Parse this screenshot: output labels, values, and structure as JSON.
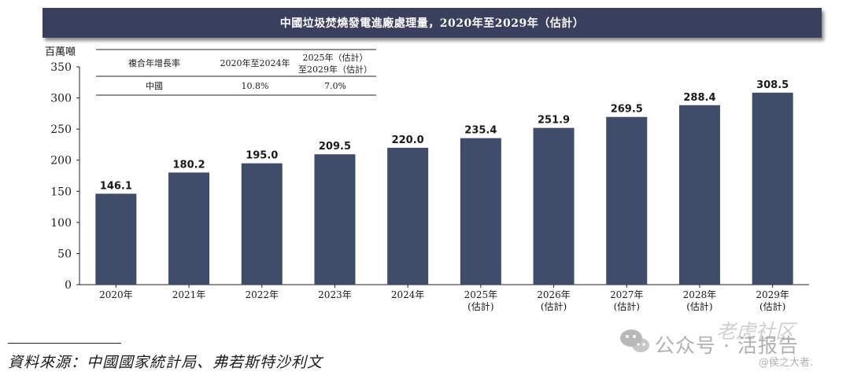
{
  "chart_data": {
    "type": "bar",
    "title": "中國垃圾焚燒發電進廠處理量，2020年至2029年（估計）",
    "ylabel": "百萬噸",
    "xlabel": "",
    "ylim": [
      0,
      350
    ],
    "yticks": [
      0,
      50,
      100,
      150,
      200,
      250,
      300,
      350
    ],
    "grid": false,
    "categories": [
      [
        "2020年"
      ],
      [
        "2021年"
      ],
      [
        "2022年"
      ],
      [
        "2023年"
      ],
      [
        "2024年"
      ],
      [
        "2025年",
        "(估計)"
      ],
      [
        "2026年",
        "(估計)"
      ],
      [
        "2027年",
        "(估計)"
      ],
      [
        "2028年",
        "(估計)"
      ],
      [
        "2029年",
        "(估計)"
      ]
    ],
    "values": [
      146.1,
      180.2,
      195.0,
      209.5,
      220.0,
      235.4,
      251.9,
      269.5,
      288.4,
      308.5
    ],
    "value_labels": [
      "146.1",
      "180.2",
      "195.0",
      "209.5",
      "220.0",
      "235.4",
      "251.9",
      "269.5",
      "288.4",
      "308.5"
    ],
    "bar_color": "#3f4d6b",
    "cagr_table": {
      "header_label": "複合年增長率",
      "period_1": "2020年至2024年",
      "period_2_line1": "2025年（估計）",
      "period_2_line2": "至2029年（估計）",
      "row_label": "中國",
      "cagr_1": "10.8%",
      "cagr_2": "7.0%"
    }
  },
  "header": {
    "title": "中國垃圾焚燒發電進廠處理量，2020年至2029年（估計）",
    "bg_color": "#3a3f5e"
  },
  "footer": {
    "source": "資料來源：中國國家統計局、弗若斯特沙利文"
  },
  "watermark": {
    "main": "公众号 · 活报告",
    "top": "老虎社区",
    "handle": "@侯之大者."
  }
}
